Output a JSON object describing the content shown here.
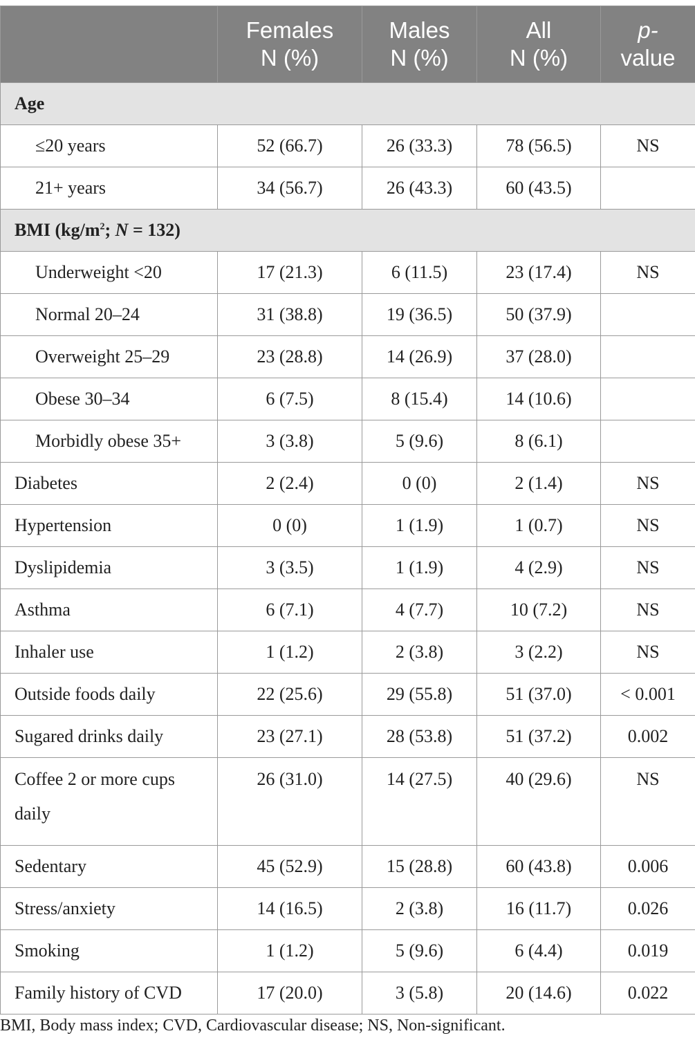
{
  "header": {
    "col2_line1": "Females",
    "col2_line2": "N (%)",
    "col3_line1": "Males",
    "col3_line2": "N (%)",
    "col4_line1": "All",
    "col4_line2": "N (%)",
    "col5_line1": "p-",
    "col5_line2": "value"
  },
  "sections": {
    "age": "Age",
    "bmi_prefix": "BMI (kg/m",
    "bmi_sup": "2",
    "bmi_mid": "; ",
    "bmi_n": "N",
    "bmi_suffix": " = 132)"
  },
  "rows": [
    {
      "label": "≤20 years",
      "females": "52 (66.7)",
      "males": "26 (33.3)",
      "all": "78 (56.5)",
      "p": "NS"
    },
    {
      "label": "21+ years",
      "females": "34 (56.7)",
      "males": "26 (43.3)",
      "all": "60 (43.5)",
      "p": ""
    },
    {
      "label": "Underweight <20",
      "females": "17 (21.3)",
      "males": "6 (11.5)",
      "all": "23 (17.4)",
      "p": "NS"
    },
    {
      "label": "Normal 20–24",
      "females": "31 (38.8)",
      "males": "19 (36.5)",
      "all": "50 (37.9)",
      "p": ""
    },
    {
      "label": "Overweight 25–29",
      "females": "23 (28.8)",
      "males": "14 (26.9)",
      "all": "37 (28.0)",
      "p": ""
    },
    {
      "label": "Obese 30–34",
      "females": "6 (7.5)",
      "males": "8 (15.4)",
      "all": "14 (10.6)",
      "p": ""
    },
    {
      "label": "Morbidly obese 35+",
      "females": "3 (3.8)",
      "males": "5 (9.6)",
      "all": "8 (6.1)",
      "p": ""
    },
    {
      "label": "Diabetes",
      "females": "2 (2.4)",
      "males": "0 (0)",
      "all": "2 (1.4)",
      "p": "NS"
    },
    {
      "label": "Hypertension",
      "females": "0 (0)",
      "males": "1 (1.9)",
      "all": "1 (0.7)",
      "p": "NS"
    },
    {
      "label": "Dyslipidemia",
      "females": "3 (3.5)",
      "males": "1 (1.9)",
      "all": "4 (2.9)",
      "p": "NS"
    },
    {
      "label": "Asthma",
      "females": "6 (7.1)",
      "males": "4 (7.7)",
      "all": "10 (7.2)",
      "p": "NS"
    },
    {
      "label": "Inhaler use",
      "females": "1 (1.2)",
      "males": "2 (3.8)",
      "all": "3 (2.2)",
      "p": "NS"
    },
    {
      "label": "Outside foods daily",
      "females": "22 (25.6)",
      "males": "29 (55.8)",
      "all": "51 (37.0)",
      "p": "< 0.001"
    },
    {
      "label": "Sugared drinks daily",
      "females": "23 (27.1)",
      "males": "28 (53.8)",
      "all": "51 (37.2)",
      "p": "0.002"
    },
    {
      "label_line1": "Coffee 2 or more cups",
      "label_line2": "daily",
      "females": "26 (31.0)",
      "males": "14 (27.5)",
      "all": "40 (29.6)",
      "p": "NS"
    },
    {
      "label": "Sedentary",
      "females": "45 (52.9)",
      "males": "15 (28.8)",
      "all": "60 (43.8)",
      "p": "0.006"
    },
    {
      "label": "Stress/anxiety",
      "females": "14 (16.5)",
      "males": "2 (3.8)",
      "all": "16 (11.7)",
      "p": "0.026"
    },
    {
      "label": "Smoking",
      "females": "1 (1.2)",
      "males": "5 (9.6)",
      "all": "6 (4.4)",
      "p": "0.019"
    },
    {
      "label": "Family history of CVD",
      "females": "17 (20.0)",
      "males": "3 (5.8)",
      "all": "20 (14.6)",
      "p": "0.022"
    }
  ],
  "footnote": "BMI, Body mass index; CVD, Cardiovascular disease; NS, Non-significant."
}
